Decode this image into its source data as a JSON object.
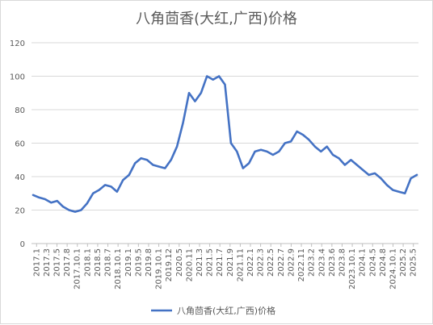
{
  "chart_data": {
    "type": "line",
    "title": "八角茴香(大红,广西)价格",
    "xlabel": "",
    "ylabel": "",
    "ylim": [
      0,
      120
    ],
    "yticks": [
      0,
      20,
      40,
      60,
      80,
      100,
      120
    ],
    "grid": true,
    "legend_position": "bottom",
    "x_tick_labels": [
      "2017.1",
      "2017.3",
      "2017.5",
      "2017.8",
      "2017.10.1",
      "2018.1",
      "2018.5",
      "2018.7",
      "2018.10.1",
      "2019.1",
      "2019.5",
      "2019.8",
      "2019.10.1",
      "2019.12",
      "2020.5",
      "2020.11",
      "2021.3",
      "2021.5",
      "2021.7",
      "2021.9",
      "2021.11",
      "2022.1",
      "2022.3",
      "2022.5",
      "2022.7",
      "2022.9",
      "2022.11",
      "2023.2",
      "2023.4",
      "2023.6",
      "2023.8",
      "2023.10.1",
      "2024.1",
      "2024.5",
      "2024.8",
      "2024.10.1",
      "2025.2",
      "2025.5"
    ],
    "series": [
      {
        "name": "八角茴香(大红,广西)价格",
        "color": "#4472c4",
        "values": [
          29,
          27.5,
          26.5,
          24.5,
          25.5,
          22,
          20,
          19,
          20,
          24,
          30,
          32,
          35,
          34,
          31,
          38,
          41,
          48,
          51,
          50,
          47,
          46,
          45,
          50,
          58,
          72,
          90,
          85,
          90,
          100,
          98,
          100,
          95,
          60,
          55,
          45,
          48,
          55,
          56,
          55,
          53,
          55,
          60,
          61,
          67,
          65,
          62,
          58,
          55,
          58,
          53,
          51,
          47,
          50,
          47,
          44,
          41,
          42,
          39,
          35,
          32,
          31,
          30,
          39,
          41
        ]
      }
    ]
  }
}
